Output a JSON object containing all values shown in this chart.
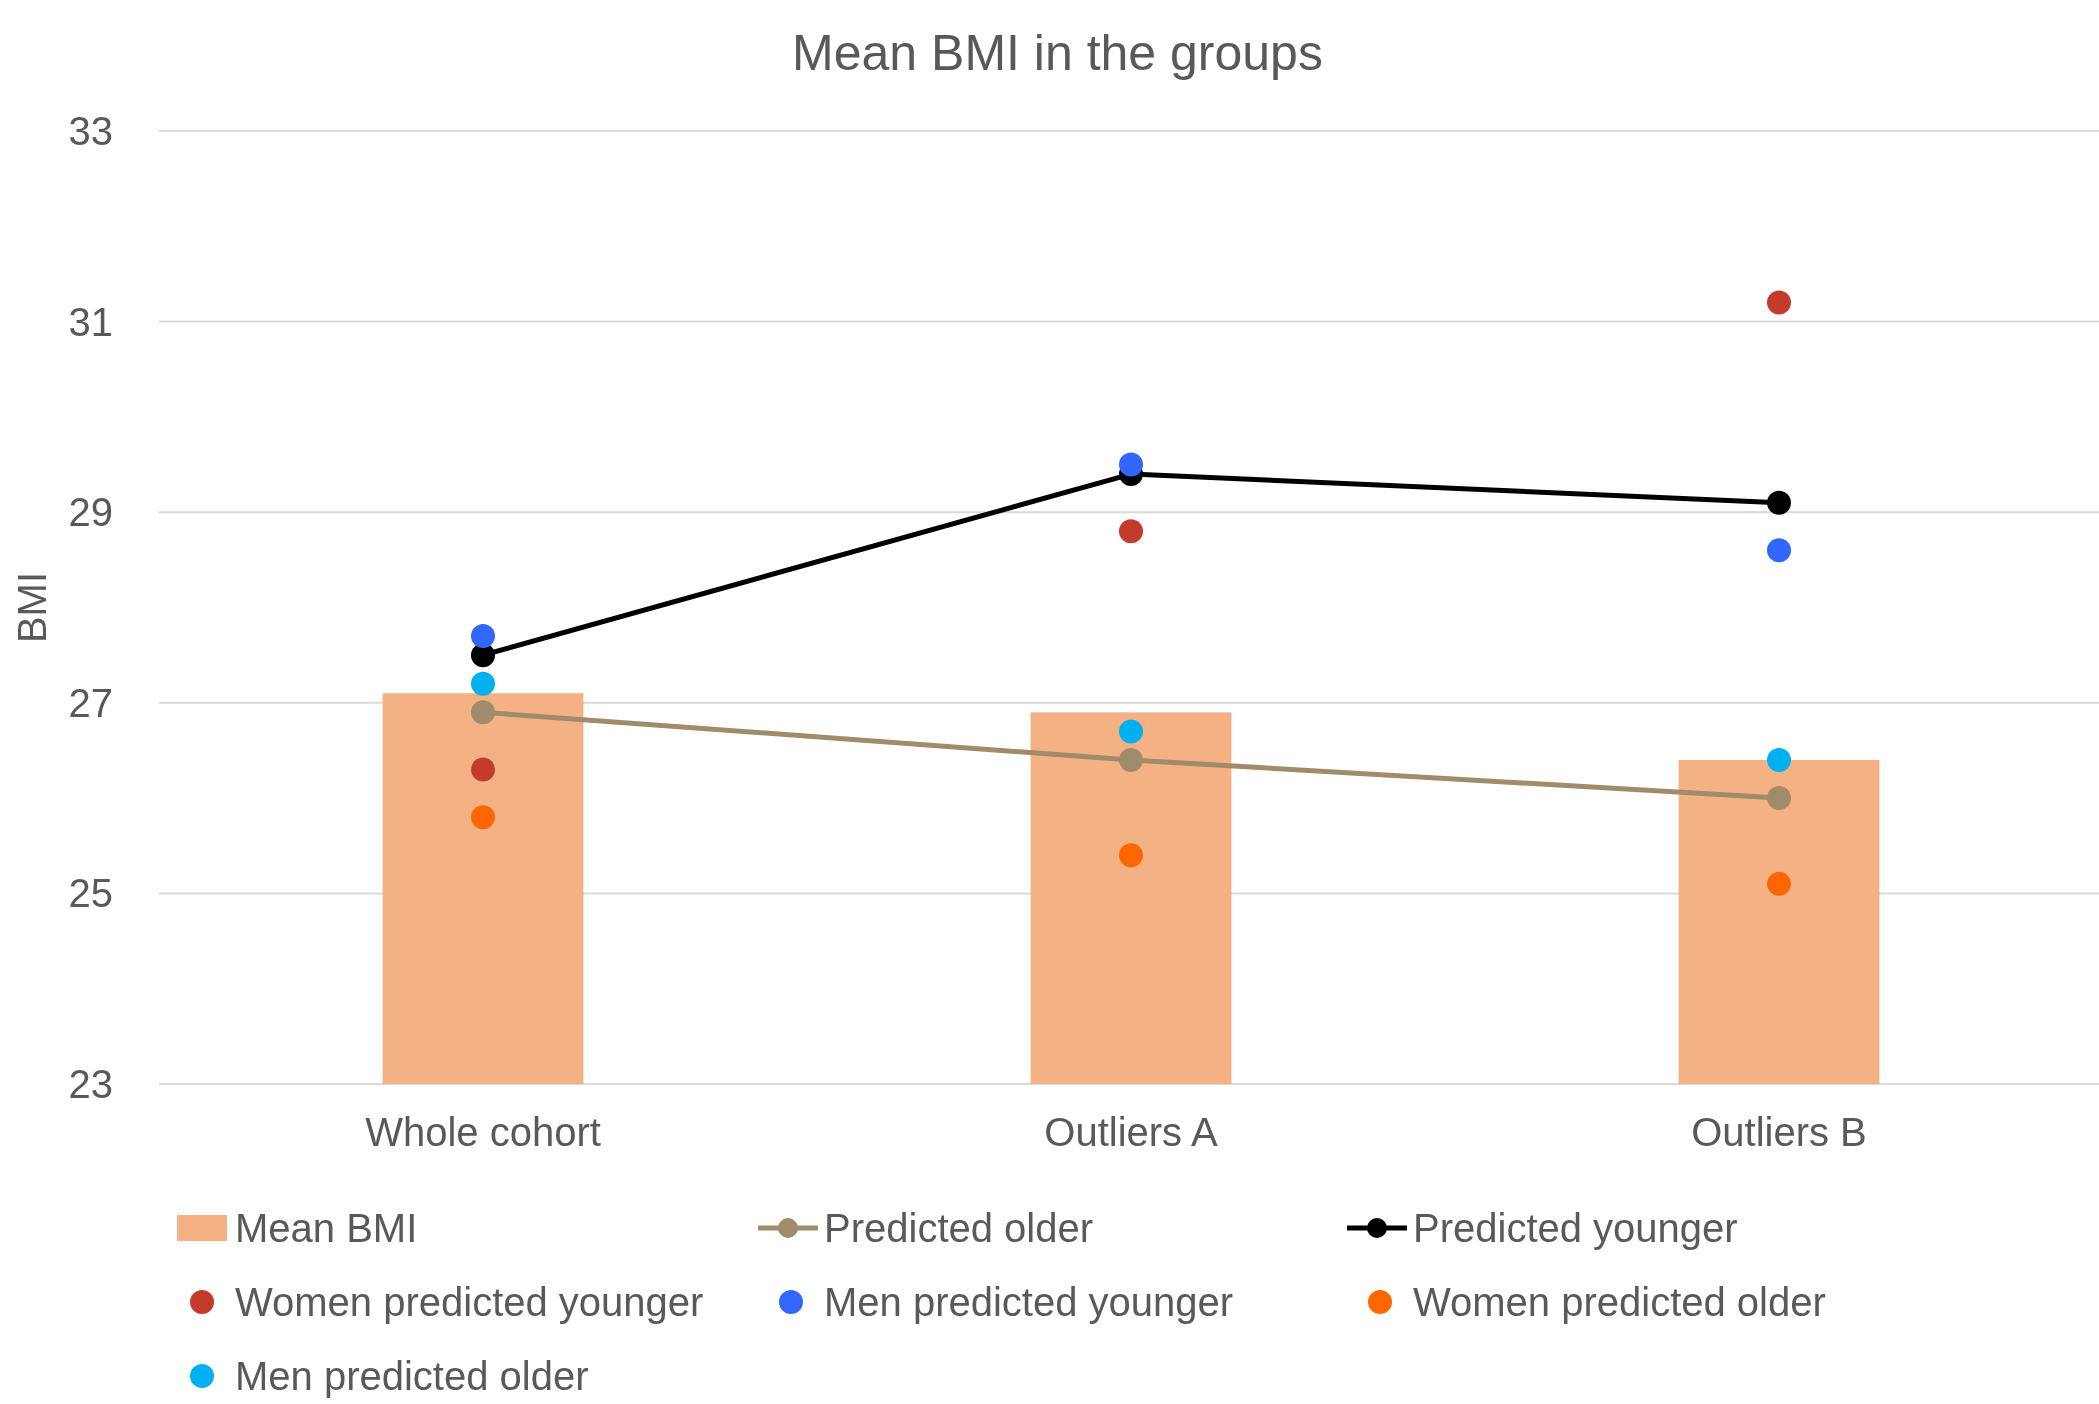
{
  "chart_data": {
    "type": "bar",
    "title": "Mean BMI in the groups",
    "ylabel": "BMI",
    "categories": [
      "Whole cohort",
      "Outliers A",
      "Outliers B"
    ],
    "series": [
      {
        "name": "Mean BMI",
        "color": "#f4b183",
        "values": [
          27.1,
          26.9,
          26.4
        ]
      },
      {
        "name": "Predicted older",
        "type": "line",
        "color": "#a08c6a",
        "values": [
          26.9,
          26.4,
          26.0
        ]
      },
      {
        "name": "Predicted younger",
        "type": "line",
        "color": "#000000",
        "values": [
          27.5,
          29.4,
          29.1
        ]
      },
      {
        "name": "Women predicted younger",
        "type": "scatter",
        "color": "#c43b2b",
        "values": [
          26.3,
          28.8,
          31.2
        ]
      },
      {
        "name": "Men predicted younger",
        "type": "scatter",
        "color": "#3366ff",
        "values": [
          27.7,
          29.5,
          28.6
        ]
      },
      {
        "name": "Women predicted older",
        "type": "scatter",
        "color": "#ff6600",
        "values": [
          25.8,
          25.4,
          25.1
        ]
      },
      {
        "name": "Men predicted older",
        "type": "scatter",
        "color": "#00b0f0",
        "values": [
          27.2,
          26.7,
          26.4
        ]
      }
    ],
    "ylim": [
      23,
      33
    ],
    "yticks": [
      23,
      25,
      27,
      29,
      31,
      33
    ],
    "grid": "y",
    "legend": "bottom",
    "marker": "circle"
  }
}
